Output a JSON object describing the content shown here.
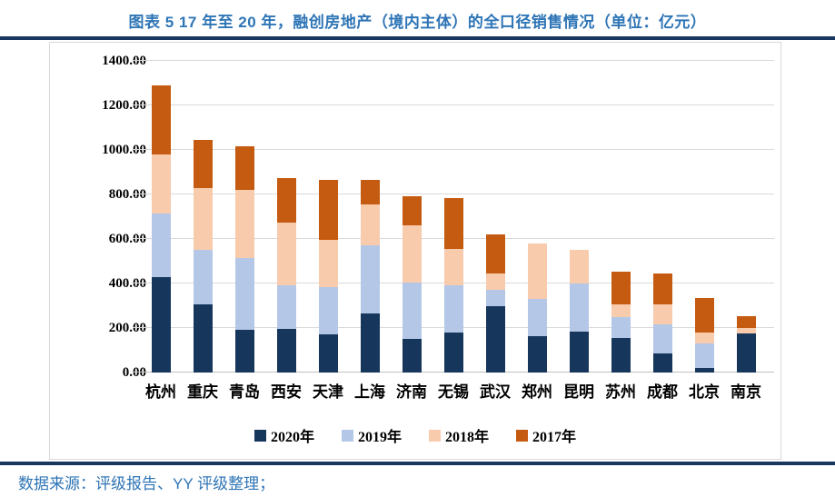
{
  "header": {
    "title": "图表 5 17 年至 20 年，融创房地产（境内主体）的全口径销售情况（单位：亿元）"
  },
  "footer": {
    "source": "数据来源：评级报告、YY 评级整理；"
  },
  "colors": {
    "title_blue": "#2E75B6",
    "rule_navy": "#17375E",
    "gridline": "#D9D9D9",
    "axis_baseline": "#C0C0C0",
    "series_2020": "#16365C",
    "series_2019": "#B4C7E7",
    "series_2018": "#F8CBAD",
    "series_2017": "#C55A11"
  },
  "chart_data": {
    "type": "bar",
    "stacked": true,
    "title": "图表 5 17 年至 20 年，融创房地产（境内主体）的全口径销售情况（单位：亿元）",
    "unit": "亿元",
    "categories": [
      "杭州",
      "重庆",
      "青岛",
      "西安",
      "天津",
      "上海",
      "济南",
      "无锡",
      "武汉",
      "郑州",
      "昆明",
      "苏州",
      "成都",
      "北京",
      "南京"
    ],
    "series": [
      {
        "name": "2020年",
        "color": "#16365C",
        "values": [
          430,
          305,
          190,
          195,
          170,
          265,
          150,
          180,
          300,
          165,
          185,
          155,
          85,
          20,
          175
        ]
      },
      {
        "name": "2019年",
        "color": "#B4C7E7",
        "values": [
          285,
          245,
          325,
          195,
          215,
          305,
          255,
          210,
          70,
          165,
          215,
          95,
          130,
          110,
          0
        ]
      },
      {
        "name": "2018年",
        "color": "#F8CBAD",
        "values": [
          265,
          280,
          305,
          285,
          210,
          185,
          255,
          165,
          75,
          250,
          150,
          55,
          90,
          50,
          25
        ]
      },
      {
        "name": "2017年",
        "color": "#C55A11",
        "values": [
          310,
          215,
          195,
          200,
          270,
          110,
          130,
          230,
          175,
          0,
          0,
          150,
          140,
          155,
          55
        ]
      }
    ],
    "totals": [
      1290,
      1045,
      1015,
      875,
      865,
      865,
      790,
      785,
      620,
      580,
      550,
      455,
      445,
      335,
      255
    ],
    "ylim": [
      0,
      1400
    ],
    "y_tick_labels": [
      "1400.00",
      "1200.00",
      "1000.00",
      "800.00",
      "600.00",
      "400.00",
      "200.00",
      "0.00"
    ],
    "y_tick_values": [
      1400,
      1200,
      1000,
      800,
      600,
      400,
      200,
      0
    ],
    "xlabel": "",
    "ylabel": "",
    "grid": true,
    "legend_position": "bottom"
  }
}
